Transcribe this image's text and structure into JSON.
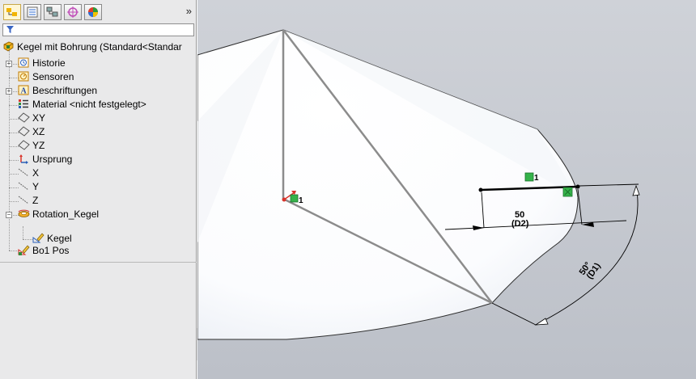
{
  "feature_manager": {
    "tabs": [
      {
        "name": "featuremanager-tab",
        "icon": "feature-tree-icon"
      },
      {
        "name": "propertymanager-tab",
        "icon": "property-manager-icon"
      },
      {
        "name": "configurationmanager-tab",
        "icon": "configuration-manager-icon"
      },
      {
        "name": "dimxpert-tab",
        "icon": "dimxpert-icon"
      },
      {
        "name": "display-manager-tab",
        "icon": "display-manager-icon"
      }
    ],
    "expand_glyph": "»",
    "filter_icon": "filter-icon",
    "root_label": "Kegel mit Bohrung  (Standard<Standar",
    "items": [
      {
        "label": "Historie",
        "icon": "history-icon"
      },
      {
        "label": "Sensoren",
        "icon": "sensor-icon"
      },
      {
        "label": "Beschriftungen",
        "icon": "annotations-icon"
      },
      {
        "label": "Material <nicht festgelegt>",
        "icon": "material-icon"
      },
      {
        "label": "XY",
        "icon": "plane-icon"
      },
      {
        "label": "XZ",
        "icon": "plane-icon"
      },
      {
        "label": "YZ",
        "icon": "plane-icon"
      },
      {
        "label": "Ursprung",
        "icon": "origin-icon"
      },
      {
        "label": "X",
        "icon": "axis-icon"
      },
      {
        "label": "Y",
        "icon": "axis-icon"
      },
      {
        "label": "Z",
        "icon": "axis-icon"
      },
      {
        "label": "Rotation_Kegel",
        "icon": "revolve-feature-icon"
      },
      {
        "label": "Kegel",
        "icon": "sketch-icon"
      },
      {
        "label": "Bo1 Pos",
        "icon": "hole-position-sketch-icon"
      }
    ]
  },
  "viewport": {
    "dimension_linear": {
      "value": "50",
      "name": "(D2)"
    },
    "dimension_angular": {
      "value": "50°",
      "name": "(D1)"
    },
    "relation_marker": "1",
    "origin_marker": "1",
    "colors": {
      "background": "#c3c6cd",
      "cone_face": "#ffffff",
      "edge": "#8c8c8c",
      "sketch_line": "#000000",
      "relation": "#35b34a"
    }
  }
}
